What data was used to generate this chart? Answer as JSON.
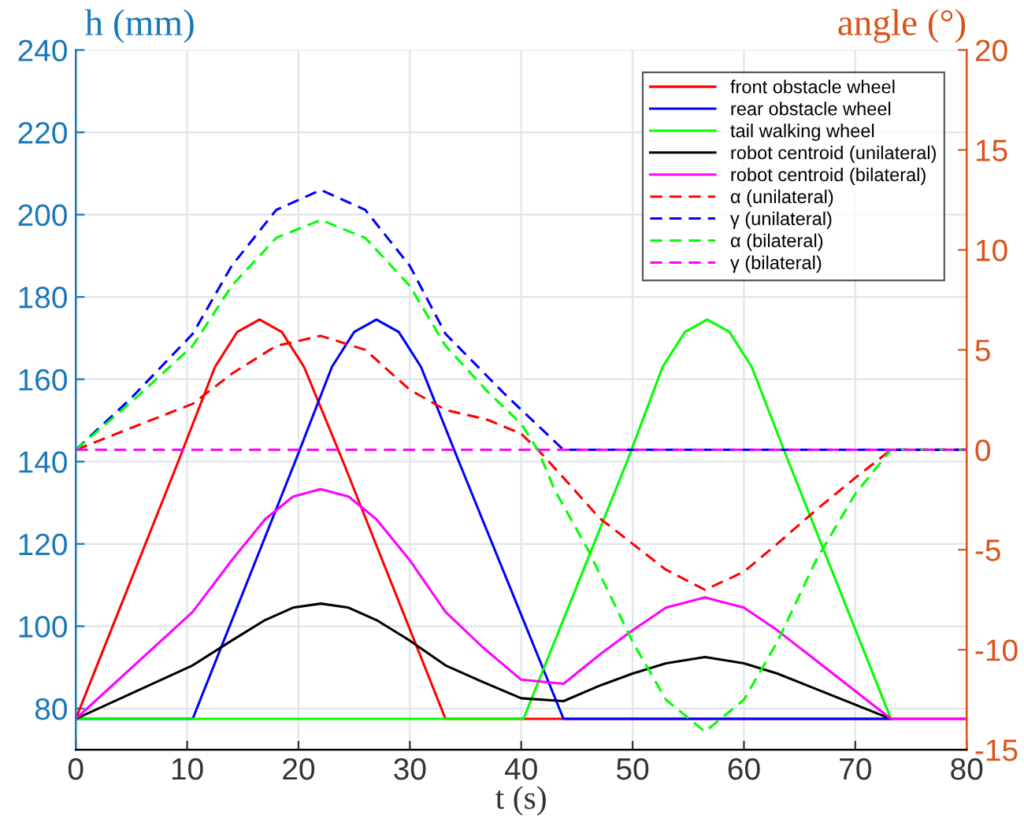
{
  "chart_data": {
    "type": "line",
    "xlabel": "t (s)",
    "ylabel": "h (mm)",
    "y2label": "angle (°)",
    "xlim": [
      0,
      80
    ],
    "xticks": [
      0,
      10,
      20,
      30,
      40,
      50,
      60,
      70,
      80
    ],
    "ylim": [
      70,
      240
    ],
    "yticks": [
      80,
      100,
      120,
      140,
      160,
      180,
      200,
      220,
      240
    ],
    "y2lim": [
      -15,
      20
    ],
    "y2ticks": [
      -15,
      -10,
      -5,
      0,
      5,
      10,
      15,
      20
    ],
    "grid": true,
    "legend": "top right",
    "marker": "none",
    "series": [
      {
        "name": "front obstacle wheel",
        "color": "#ff0000",
        "line_style": "solid",
        "x": [
          0,
          9.2,
          12.5,
          14.5,
          16.5,
          18.5,
          20.5,
          24,
          33.2,
          80
        ],
        "values": [
          77.5,
          140,
          163,
          171.5,
          174.5,
          171.5,
          163,
          140,
          77.5,
          77.5
        ]
      },
      {
        "name": "rear obstacle wheel",
        "color": "#0000ff",
        "line_style": "solid",
        "x": [
          0,
          10.5,
          19.7,
          23,
          25,
          27,
          29,
          31,
          34.4,
          43.8,
          73.2
        ],
        "values": [
          77.5,
          77.5,
          140,
          163,
          171.5,
          174.5,
          171.5,
          163,
          140,
          77.5,
          77.5
        ]
      },
      {
        "name": "tail walking wheel",
        "color": "#00ff00",
        "line_style": "solid",
        "x": [
          0,
          40.2,
          49.5,
          52.7,
          54.7,
          56.7,
          58.7,
          60.7,
          64,
          73.2
        ],
        "values": [
          77.5,
          77.5,
          140,
          163,
          171.5,
          174.5,
          171.5,
          163,
          140,
          77.5
        ]
      },
      {
        "name": "robot centroid (unilateral)",
        "color": "#000000",
        "line_style": "solid",
        "x": [
          0,
          10.5,
          14,
          17,
          19.5,
          22,
          24.5,
          27,
          30,
          33.2,
          36.5,
          40,
          43.8,
          47,
          50,
          53,
          56.5,
          60,
          63,
          73.2
        ],
        "values": [
          77.5,
          90.5,
          96.5,
          101.5,
          104.5,
          105.5,
          104.5,
          101.5,
          96.5,
          90.5,
          86.5,
          82.5,
          81.8,
          85.5,
          88.5,
          91,
          92.5,
          91,
          88.5,
          77.5
        ]
      },
      {
        "name": "robot centroid (bilateral)",
        "color": "#ff00ff",
        "line_style": "solid",
        "x": [
          0,
          10.5,
          14,
          17,
          19.5,
          22,
          24.5,
          27,
          30,
          33.2,
          36.5,
          40,
          43.8,
          47,
          50,
          53,
          56.5,
          60,
          63,
          73.2,
          80
        ],
        "values": [
          77.5,
          103.5,
          116,
          126,
          131.5,
          133.3,
          131.5,
          126,
          116,
          103.5,
          95,
          87,
          86,
          93,
          99,
          104.5,
          107,
          104.5,
          99,
          77.5,
          77.5
        ]
      },
      {
        "name": "α (unilateral)",
        "color": "#ff0000",
        "line_style": "dashed",
        "axis": "y2",
        "x": [
          0,
          5,
          10.5,
          14,
          18,
          22,
          26,
          30,
          33.2,
          37,
          40,
          41.5,
          43.8,
          47,
          50,
          53,
          56.5,
          60,
          63,
          66.5,
          70,
          73.2,
          80
        ],
        "values": [
          0,
          1.1,
          2.3,
          3.8,
          5.2,
          5.7,
          5.0,
          3.0,
          2.0,
          1.5,
          0.8,
          0,
          -1.4,
          -3.4,
          -4.7,
          -6.0,
          -7.0,
          -6.1,
          -4.7,
          -3.0,
          -1.4,
          0,
          0
        ]
      },
      {
        "name": "γ (unilateral)",
        "color": "#0000ff",
        "line_style": "dashed",
        "axis": "y2",
        "x": [
          0,
          5,
          10.5,
          14,
          18,
          22,
          26,
          30,
          33.2,
          38.5,
          43.8,
          80
        ],
        "values": [
          0,
          2.6,
          5.8,
          9.2,
          12.0,
          13.0,
          12.0,
          9.2,
          5.8,
          2.8,
          0,
          0
        ]
      },
      {
        "name": "α (bilateral)",
        "color": "#00ff00",
        "line_style": "dashed",
        "axis": "y2",
        "x": [
          0,
          5,
          10.5,
          14,
          18,
          22,
          26,
          30,
          33.2,
          37,
          40,
          41.5,
          43,
          46,
          48,
          50,
          53,
          56.5,
          60,
          63,
          66.5,
          70,
          73.2,
          80
        ],
        "values": [
          0,
          2.4,
          5.2,
          8.2,
          10.6,
          11.5,
          10.6,
          8.2,
          5.2,
          2.9,
          1.3,
          0,
          -2,
          -5,
          -7.3,
          -9.6,
          -12.5,
          -14.1,
          -12.5,
          -9.6,
          -5.5,
          -2.2,
          0,
          0
        ]
      },
      {
        "name": "γ (bilateral)",
        "color": "#ff00ff",
        "line_style": "dashed",
        "axis": "y2",
        "x": [
          0,
          80
        ],
        "values": [
          0,
          0
        ]
      }
    ]
  }
}
